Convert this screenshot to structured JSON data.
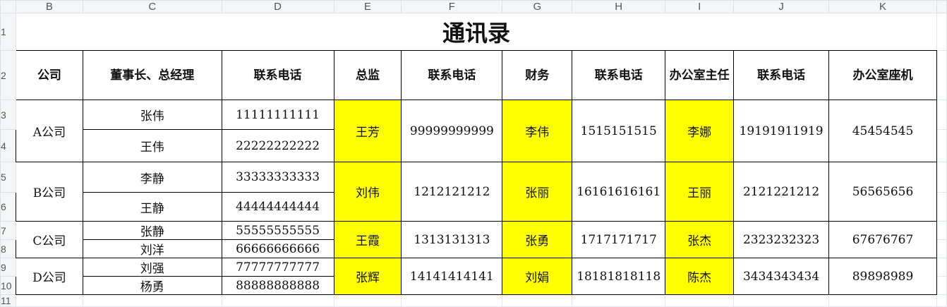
{
  "column_headers": [
    "B",
    "C",
    "D",
    "E",
    "F",
    "G",
    "H",
    "I",
    "J",
    "K"
  ],
  "row_headers": [
    "1",
    "2",
    "3",
    "4",
    "5",
    "6",
    "7",
    "8",
    "9",
    "10",
    "11"
  ],
  "title": "通讯录",
  "headers": [
    "公司",
    "董事长、总经理",
    "联系电话",
    "总监",
    "联系电话",
    "财务",
    "联系电话",
    "办公室主任",
    "联系电话",
    "办公室座机"
  ],
  "highlight_color": "#ffff00",
  "companies": [
    {
      "name": "A公司",
      "executives": [
        {
          "name": "张伟",
          "phone": "11111111111"
        },
        {
          "name": "王伟",
          "phone": "22222222222"
        }
      ],
      "director": "王芳",
      "director_phone": "99999999999",
      "finance": "李伟",
      "finance_phone": "1515151515",
      "office_head": "李娜",
      "office_phone": "19191911919",
      "landline": "45454545"
    },
    {
      "name": "B公司",
      "executives": [
        {
          "name": "李静",
          "phone": "33333333333"
        },
        {
          "name": "王静",
          "phone": "44444444444"
        }
      ],
      "director": "刘伟",
      "director_phone": "1212121212",
      "finance": "张丽",
      "finance_phone": "16161616161",
      "office_head": "王丽",
      "office_phone": "2121221212",
      "landline": "56565656"
    },
    {
      "name": "C公司",
      "executives": [
        {
          "name": "张静",
          "phone": "55555555555"
        },
        {
          "name": "刘洋",
          "phone": "66666666666"
        }
      ],
      "director": "王霞",
      "director_phone": "1313131313",
      "finance": "张勇",
      "finance_phone": "1717171717",
      "office_head": "张杰",
      "office_phone": "2323232323",
      "landline": "67676767"
    },
    {
      "name": "D公司",
      "executives": [
        {
          "name": "刘强",
          "phone": "77777777777"
        },
        {
          "name": "杨勇",
          "phone": "88888888888"
        }
      ],
      "director": "张辉",
      "director_phone": "14141414141",
      "finance": "刘娟",
      "finance_phone": "18181818118",
      "office_head": "陈杰",
      "office_phone": "3434343434",
      "landline": "89898989"
    }
  ]
}
